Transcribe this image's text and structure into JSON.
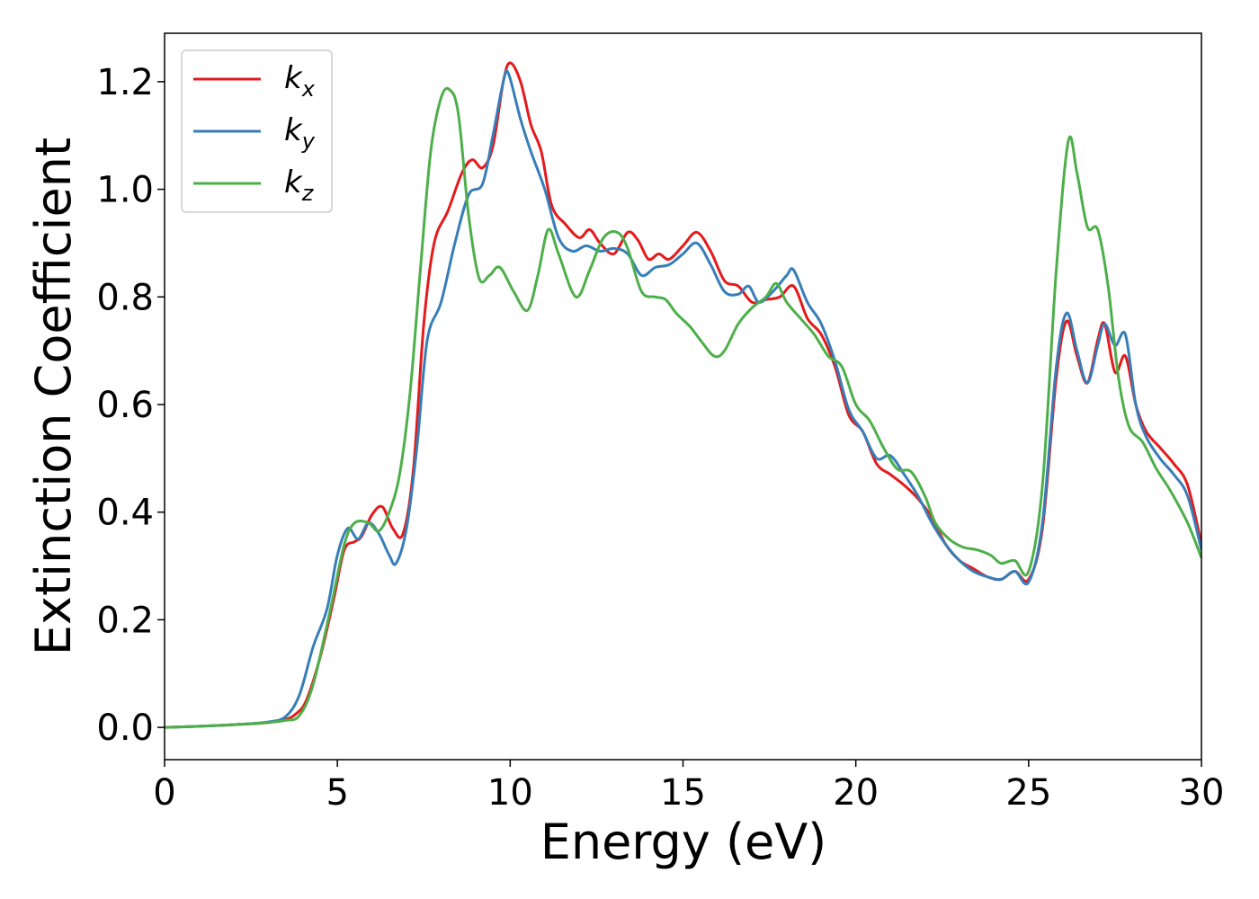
{
  "chart_data": {
    "type": "line",
    "title": "",
    "xlabel": "Energy (eV)",
    "ylabel": "Extinction Coefficient",
    "xlim": [
      0,
      30
    ],
    "ylim": [
      -0.06,
      1.29
    ],
    "xticks": [
      0,
      5,
      10,
      15,
      20,
      25,
      30
    ],
    "xtick_labels": [
      "0",
      "5",
      "10",
      "15",
      "20",
      "25",
      "30"
    ],
    "yticks": [
      0.0,
      0.2,
      0.4,
      0.6,
      0.8,
      1.0,
      1.2
    ],
    "ytick_labels": [
      "0.0",
      "0.2",
      "0.4",
      "0.6",
      "0.8",
      "1.0",
      "1.2"
    ],
    "grid": false,
    "legend_position": "top-left",
    "series": [
      {
        "name": "k_x",
        "legend_base": "k",
        "legend_sub": "x",
        "color": "#e41a1c",
        "points": [
          [
            0,
            0
          ],
          [
            1,
            0.002
          ],
          [
            2,
            0.005
          ],
          [
            3,
            0.009
          ],
          [
            3.5,
            0.015
          ],
          [
            3.8,
            0.025
          ],
          [
            4.1,
            0.05
          ],
          [
            4.5,
            0.13
          ],
          [
            4.9,
            0.24
          ],
          [
            5.2,
            0.33
          ],
          [
            5.5,
            0.345
          ],
          [
            5.7,
            0.355
          ],
          [
            6.0,
            0.395
          ],
          [
            6.3,
            0.41
          ],
          [
            6.6,
            0.37
          ],
          [
            6.9,
            0.36
          ],
          [
            7.2,
            0.48
          ],
          [
            7.5,
            0.75
          ],
          [
            7.8,
            0.9
          ],
          [
            8.2,
            0.96
          ],
          [
            8.6,
            1.03
          ],
          [
            8.9,
            1.055
          ],
          [
            9.2,
            1.04
          ],
          [
            9.5,
            1.08
          ],
          [
            9.8,
            1.2
          ],
          [
            10.0,
            1.235
          ],
          [
            10.3,
            1.2
          ],
          [
            10.6,
            1.12
          ],
          [
            10.9,
            1.07
          ],
          [
            11.2,
            0.97
          ],
          [
            11.6,
            0.935
          ],
          [
            12.0,
            0.91
          ],
          [
            12.3,
            0.925
          ],
          [
            12.6,
            0.9
          ],
          [
            13.0,
            0.88
          ],
          [
            13.4,
            0.92
          ],
          [
            13.7,
            0.905
          ],
          [
            14.0,
            0.87
          ],
          [
            14.3,
            0.88
          ],
          [
            14.6,
            0.87
          ],
          [
            15.0,
            0.895
          ],
          [
            15.4,
            0.92
          ],
          [
            15.8,
            0.885
          ],
          [
            16.2,
            0.83
          ],
          [
            16.6,
            0.82
          ],
          [
            17.0,
            0.79
          ],
          [
            17.4,
            0.795
          ],
          [
            17.8,
            0.8
          ],
          [
            18.2,
            0.82
          ],
          [
            18.6,
            0.76
          ],
          [
            19.0,
            0.73
          ],
          [
            19.4,
            0.67
          ],
          [
            19.8,
            0.58
          ],
          [
            20.2,
            0.55
          ],
          [
            20.6,
            0.49
          ],
          [
            21.0,
            0.47
          ],
          [
            21.4,
            0.45
          ],
          [
            21.8,
            0.425
          ],
          [
            22.2,
            0.39
          ],
          [
            22.6,
            0.34
          ],
          [
            23.0,
            0.31
          ],
          [
            23.4,
            0.295
          ],
          [
            23.8,
            0.28
          ],
          [
            24.2,
            0.275
          ],
          [
            24.6,
            0.29
          ],
          [
            25.0,
            0.275
          ],
          [
            25.4,
            0.37
          ],
          [
            25.8,
            0.65
          ],
          [
            26.1,
            0.755
          ],
          [
            26.4,
            0.69
          ],
          [
            26.7,
            0.64
          ],
          [
            27.0,
            0.72
          ],
          [
            27.2,
            0.75
          ],
          [
            27.5,
            0.66
          ],
          [
            27.8,
            0.69
          ],
          [
            28.1,
            0.6
          ],
          [
            28.4,
            0.55
          ],
          [
            28.8,
            0.52
          ],
          [
            29.2,
            0.49
          ],
          [
            29.6,
            0.45
          ],
          [
            30.0,
            0.34
          ]
        ]
      },
      {
        "name": "k_y",
        "legend_base": "k",
        "legend_sub": "y",
        "color": "#377eb8",
        "points": [
          [
            0,
            0
          ],
          [
            1,
            0.002
          ],
          [
            2,
            0.005
          ],
          [
            3,
            0.01
          ],
          [
            3.5,
            0.02
          ],
          [
            3.9,
            0.06
          ],
          [
            4.3,
            0.15
          ],
          [
            4.7,
            0.22
          ],
          [
            5.0,
            0.32
          ],
          [
            5.3,
            0.37
          ],
          [
            5.6,
            0.35
          ],
          [
            5.9,
            0.38
          ],
          [
            6.2,
            0.36
          ],
          [
            6.5,
            0.32
          ],
          [
            6.7,
            0.305
          ],
          [
            7.0,
            0.37
          ],
          [
            7.3,
            0.52
          ],
          [
            7.6,
            0.72
          ],
          [
            8.0,
            0.79
          ],
          [
            8.4,
            0.9
          ],
          [
            8.8,
            0.99
          ],
          [
            9.2,
            1.01
          ],
          [
            9.5,
            1.1
          ],
          [
            9.8,
            1.2
          ],
          [
            9.95,
            1.215
          ],
          [
            10.3,
            1.13
          ],
          [
            10.6,
            1.07
          ],
          [
            11.0,
            1.0
          ],
          [
            11.4,
            0.91
          ],
          [
            11.8,
            0.885
          ],
          [
            12.2,
            0.895
          ],
          [
            12.6,
            0.885
          ],
          [
            13.0,
            0.89
          ],
          [
            13.4,
            0.88
          ],
          [
            13.8,
            0.84
          ],
          [
            14.2,
            0.855
          ],
          [
            14.6,
            0.86
          ],
          [
            15.0,
            0.88
          ],
          [
            15.4,
            0.9
          ],
          [
            15.8,
            0.86
          ],
          [
            16.2,
            0.81
          ],
          [
            16.6,
            0.805
          ],
          [
            16.9,
            0.82
          ],
          [
            17.2,
            0.79
          ],
          [
            17.6,
            0.81
          ],
          [
            18.0,
            0.84
          ],
          [
            18.2,
            0.85
          ],
          [
            18.6,
            0.79
          ],
          [
            19.0,
            0.75
          ],
          [
            19.4,
            0.68
          ],
          [
            19.8,
            0.59
          ],
          [
            20.2,
            0.55
          ],
          [
            20.6,
            0.5
          ],
          [
            21.0,
            0.505
          ],
          [
            21.4,
            0.47
          ],
          [
            21.8,
            0.43
          ],
          [
            22.2,
            0.38
          ],
          [
            22.6,
            0.34
          ],
          [
            23.0,
            0.31
          ],
          [
            23.4,
            0.29
          ],
          [
            23.8,
            0.28
          ],
          [
            24.2,
            0.275
          ],
          [
            24.6,
            0.29
          ],
          [
            25.0,
            0.27
          ],
          [
            25.4,
            0.38
          ],
          [
            25.8,
            0.67
          ],
          [
            26.1,
            0.77
          ],
          [
            26.4,
            0.7
          ],
          [
            26.7,
            0.64
          ],
          [
            27.0,
            0.71
          ],
          [
            27.2,
            0.75
          ],
          [
            27.5,
            0.71
          ],
          [
            27.8,
            0.73
          ],
          [
            28.1,
            0.6
          ],
          [
            28.4,
            0.54
          ],
          [
            28.8,
            0.5
          ],
          [
            29.2,
            0.47
          ],
          [
            29.6,
            0.43
          ],
          [
            30.0,
            0.33
          ]
        ]
      },
      {
        "name": "k_z",
        "legend_base": "k",
        "legend_sub": "z",
        "color": "#4daf4a",
        "points": [
          [
            0,
            0
          ],
          [
            1,
            0.002
          ],
          [
            2,
            0.005
          ],
          [
            3,
            0.009
          ],
          [
            3.5,
            0.013
          ],
          [
            3.9,
            0.022
          ],
          [
            4.3,
            0.08
          ],
          [
            4.8,
            0.22
          ],
          [
            5.2,
            0.34
          ],
          [
            5.5,
            0.38
          ],
          [
            5.9,
            0.38
          ],
          [
            6.2,
            0.365
          ],
          [
            6.5,
            0.4
          ],
          [
            6.8,
            0.47
          ],
          [
            7.1,
            0.62
          ],
          [
            7.4,
            0.85
          ],
          [
            7.7,
            1.07
          ],
          [
            8.0,
            1.17
          ],
          [
            8.25,
            1.185
          ],
          [
            8.5,
            1.14
          ],
          [
            8.8,
            0.95
          ],
          [
            9.1,
            0.835
          ],
          [
            9.4,
            0.84
          ],
          [
            9.7,
            0.855
          ],
          [
            10.1,
            0.81
          ],
          [
            10.5,
            0.775
          ],
          [
            10.8,
            0.84
          ],
          [
            11.1,
            0.925
          ],
          [
            11.4,
            0.88
          ],
          [
            11.9,
            0.8
          ],
          [
            12.3,
            0.85
          ],
          [
            12.7,
            0.91
          ],
          [
            13.1,
            0.92
          ],
          [
            13.4,
            0.89
          ],
          [
            13.8,
            0.81
          ],
          [
            14.2,
            0.8
          ],
          [
            14.5,
            0.795
          ],
          [
            14.8,
            0.77
          ],
          [
            15.2,
            0.745
          ],
          [
            15.5,
            0.72
          ],
          [
            15.9,
            0.69
          ],
          [
            16.2,
            0.7
          ],
          [
            16.6,
            0.75
          ],
          [
            17.0,
            0.78
          ],
          [
            17.4,
            0.8
          ],
          [
            17.7,
            0.825
          ],
          [
            18.0,
            0.79
          ],
          [
            18.4,
            0.76
          ],
          [
            18.8,
            0.73
          ],
          [
            19.2,
            0.69
          ],
          [
            19.6,
            0.67
          ],
          [
            20.0,
            0.6
          ],
          [
            20.4,
            0.57
          ],
          [
            20.8,
            0.52
          ],
          [
            21.2,
            0.48
          ],
          [
            21.6,
            0.475
          ],
          [
            22.0,
            0.43
          ],
          [
            22.3,
            0.38
          ],
          [
            22.7,
            0.35
          ],
          [
            23.1,
            0.335
          ],
          [
            23.5,
            0.33
          ],
          [
            23.9,
            0.32
          ],
          [
            24.2,
            0.305
          ],
          [
            24.6,
            0.31
          ],
          [
            25.0,
            0.29
          ],
          [
            25.4,
            0.45
          ],
          [
            25.8,
            0.85
          ],
          [
            26.15,
            1.09
          ],
          [
            26.4,
            1.03
          ],
          [
            26.7,
            0.93
          ],
          [
            27.0,
            0.925
          ],
          [
            27.3,
            0.82
          ],
          [
            27.6,
            0.65
          ],
          [
            27.9,
            0.56
          ],
          [
            28.3,
            0.53
          ],
          [
            28.7,
            0.48
          ],
          [
            29.1,
            0.44
          ],
          [
            29.6,
            0.38
          ],
          [
            30.0,
            0.315
          ]
        ]
      }
    ]
  }
}
